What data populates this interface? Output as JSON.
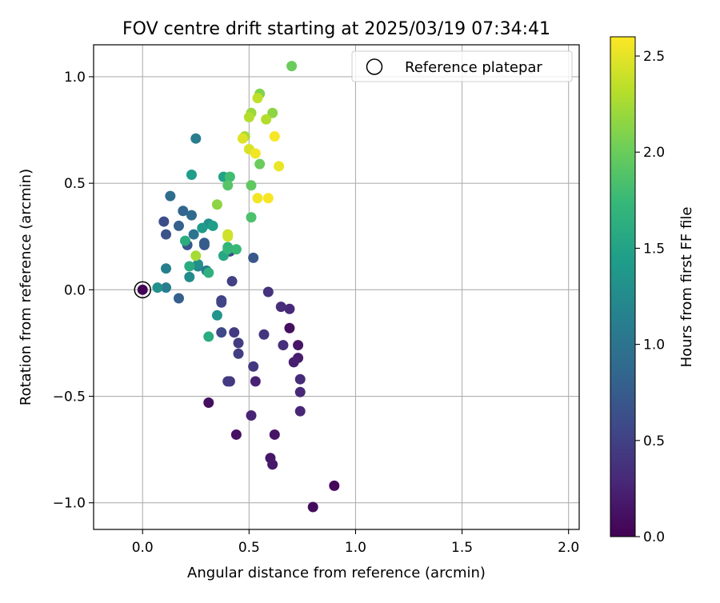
{
  "chart_data": {
    "type": "scatter",
    "title": "FOV centre drift starting at 2025/03/19 07:34:41",
    "xlabel": "Angular distance from reference (arcmin)",
    "ylabel": "Rotation from reference (arcmin)",
    "xlim": [
      -0.23,
      2.05
    ],
    "ylim": [
      -1.125,
      1.15
    ],
    "xticks": [
      0.0,
      0.5,
      1.0,
      1.5,
      2.0
    ],
    "xtick_labels": [
      "0.0",
      "0.5",
      "1.0",
      "1.5",
      "2.0"
    ],
    "yticks": [
      -1.0,
      -0.5,
      0.0,
      0.5,
      1.0
    ],
    "ytick_labels": [
      "−1.0",
      "−0.5",
      "0.0",
      "0.5",
      "1.0"
    ],
    "grid": true,
    "legend": {
      "position": "upper right",
      "entries": [
        "Reference platepar"
      ]
    },
    "reference_point": {
      "x": 0.0,
      "y": 0.0,
      "hours": 0.0
    },
    "colorbar": {
      "label": "Hours from first FF file",
      "colormap": "viridis",
      "range": [
        0.0,
        2.6
      ],
      "ticks": [
        0.0,
        0.5,
        1.0,
        1.5,
        2.0,
        2.5
      ],
      "tick_labels": [
        "0.0",
        "0.5",
        "1.0",
        "1.5",
        "2.0",
        "2.5"
      ]
    },
    "series": [
      {
        "points": [
          {
            "x": 0.0,
            "y": 0.0,
            "c": 0.02
          },
          {
            "x": 0.9,
            "y": -0.92,
            "c": 0.05
          },
          {
            "x": 0.8,
            "y": -1.02,
            "c": 0.08
          },
          {
            "x": 0.31,
            "y": -0.53,
            "c": 0.1
          },
          {
            "x": 0.44,
            "y": -0.68,
            "c": 0.12
          },
          {
            "x": 0.62,
            "y": -0.68,
            "c": 0.14
          },
          {
            "x": 0.6,
            "y": -0.79,
            "c": 0.16
          },
          {
            "x": 0.61,
            "y": -0.82,
            "c": 0.18
          },
          {
            "x": 0.69,
            "y": -0.18,
            "c": 0.1
          },
          {
            "x": 0.73,
            "y": -0.26,
            "c": 0.15
          },
          {
            "x": 0.73,
            "y": -0.32,
            "c": 0.2
          },
          {
            "x": 0.71,
            "y": -0.34,
            "c": 0.22
          },
          {
            "x": 0.53,
            "y": -0.43,
            "c": 0.25
          },
          {
            "x": 0.51,
            "y": -0.59,
            "c": 0.26
          },
          {
            "x": 0.74,
            "y": -0.57,
            "c": 0.28
          },
          {
            "x": 0.74,
            "y": -0.48,
            "c": 0.3
          },
          {
            "x": 0.74,
            "y": -0.42,
            "c": 0.32
          },
          {
            "x": 0.69,
            "y": -0.09,
            "c": 0.3
          },
          {
            "x": 0.65,
            "y": -0.08,
            "c": 0.34
          },
          {
            "x": 0.66,
            "y": -0.26,
            "c": 0.36
          },
          {
            "x": 0.59,
            "y": -0.01,
            "c": 0.38
          },
          {
            "x": 0.57,
            "y": -0.21,
            "c": 0.4
          },
          {
            "x": 0.52,
            "y": -0.36,
            "c": 0.42
          },
          {
            "x": 0.41,
            "y": -0.43,
            "c": 0.4
          },
          {
            "x": 0.4,
            "y": -0.43,
            "c": 0.44
          },
          {
            "x": 0.43,
            "y": -0.2,
            "c": 0.45
          },
          {
            "x": 0.45,
            "y": -0.25,
            "c": 0.46
          },
          {
            "x": 0.45,
            "y": -0.3,
            "c": 0.48
          },
          {
            "x": 0.42,
            "y": 0.04,
            "c": 0.5
          },
          {
            "x": 0.37,
            "y": -0.05,
            "c": 0.52
          },
          {
            "x": 0.37,
            "y": -0.06,
            "c": 0.54
          },
          {
            "x": 0.37,
            "y": -0.2,
            "c": 0.56
          },
          {
            "x": 0.41,
            "y": 0.18,
            "c": 0.58
          },
          {
            "x": 0.52,
            "y": 0.15,
            "c": 0.7
          },
          {
            "x": 0.1,
            "y": 0.32,
            "c": 0.6
          },
          {
            "x": 0.11,
            "y": 0.26,
            "c": 0.65
          },
          {
            "x": 0.21,
            "y": 0.21,
            "c": 0.68
          },
          {
            "x": 0.29,
            "y": 0.21,
            "c": 0.72
          },
          {
            "x": 0.29,
            "y": 0.22,
            "c": 0.75
          },
          {
            "x": 0.17,
            "y": -0.04,
            "c": 0.78
          },
          {
            "x": 0.17,
            "y": 0.3,
            "c": 0.8
          },
          {
            "x": 0.19,
            "y": 0.37,
            "c": 0.85
          },
          {
            "x": 0.23,
            "y": 0.35,
            "c": 0.9
          },
          {
            "x": 0.13,
            "y": 0.44,
            "c": 0.92
          },
          {
            "x": 0.24,
            "y": 0.26,
            "c": 1.0
          },
          {
            "x": 0.3,
            "y": 0.09,
            "c": 1.05
          },
          {
            "x": 0.11,
            "y": 0.01,
            "c": 1.1
          },
          {
            "x": 0.11,
            "y": 0.1,
            "c": 1.12
          },
          {
            "x": 0.26,
            "y": 0.11,
            "c": 1.15
          },
          {
            "x": 0.25,
            "y": 0.71,
            "c": 1.1
          },
          {
            "x": 0.22,
            "y": 0.06,
            "c": 1.25
          },
          {
            "x": 0.26,
            "y": 0.12,
            "c": 1.28
          },
          {
            "x": 0.07,
            "y": 0.01,
            "c": 1.3
          },
          {
            "x": 0.31,
            "y": 0.31,
            "c": 1.3
          },
          {
            "x": 0.35,
            "y": -0.12,
            "c": 1.35
          },
          {
            "x": 0.28,
            "y": 0.29,
            "c": 1.4
          },
          {
            "x": 0.33,
            "y": 0.3,
            "c": 1.45
          },
          {
            "x": 0.23,
            "y": 0.54,
            "c": 1.45
          },
          {
            "x": 0.38,
            "y": 0.53,
            "c": 1.5
          },
          {
            "x": 0.38,
            "y": 0.16,
            "c": 1.55
          },
          {
            "x": 0.22,
            "y": 0.11,
            "c": 1.6
          },
          {
            "x": 0.31,
            "y": -0.22,
            "c": 1.6
          },
          {
            "x": 0.31,
            "y": 0.08,
            "c": 1.65
          },
          {
            "x": 0.4,
            "y": 0.2,
            "c": 1.7
          },
          {
            "x": 0.4,
            "y": 0.19,
            "c": 1.72
          },
          {
            "x": 0.44,
            "y": 0.19,
            "c": 1.75
          },
          {
            "x": 0.2,
            "y": 0.23,
            "c": 1.62
          },
          {
            "x": 0.51,
            "y": 0.34,
            "c": 1.85
          },
          {
            "x": 0.41,
            "y": 0.53,
            "c": 1.8
          },
          {
            "x": 0.4,
            "y": 0.49,
            "c": 1.9
          },
          {
            "x": 0.51,
            "y": 0.49,
            "c": 1.95
          },
          {
            "x": 0.55,
            "y": 0.59,
            "c": 2.0
          },
          {
            "x": 0.7,
            "y": 1.05,
            "c": 2.0
          },
          {
            "x": 0.35,
            "y": 0.4,
            "c": 2.15
          },
          {
            "x": 0.25,
            "y": 0.16,
            "c": 2.25
          },
          {
            "x": 0.55,
            "y": 0.92,
            "c": 2.1
          },
          {
            "x": 0.61,
            "y": 0.83,
            "c": 2.15
          },
          {
            "x": 0.51,
            "y": 0.83,
            "c": 2.2
          },
          {
            "x": 0.48,
            "y": 0.72,
            "c": 2.25
          },
          {
            "x": 0.5,
            "y": 0.81,
            "c": 2.3
          },
          {
            "x": 0.58,
            "y": 0.8,
            "c": 2.3
          },
          {
            "x": 0.54,
            "y": 0.9,
            "c": 2.35
          },
          {
            "x": 0.4,
            "y": 0.26,
            "c": 2.4
          },
          {
            "x": 0.4,
            "y": 0.25,
            "c": 2.42
          },
          {
            "x": 0.5,
            "y": 0.66,
            "c": 2.45
          },
          {
            "x": 0.47,
            "y": 0.71,
            "c": 2.48
          },
          {
            "x": 0.53,
            "y": 0.64,
            "c": 2.55
          },
          {
            "x": 0.54,
            "y": 0.43,
            "c": 2.55
          },
          {
            "x": 0.59,
            "y": 0.43,
            "c": 2.58
          },
          {
            "x": 0.62,
            "y": 0.72,
            "c": 2.57
          },
          {
            "x": 0.64,
            "y": 0.58,
            "c": 2.52
          }
        ]
      }
    ]
  }
}
